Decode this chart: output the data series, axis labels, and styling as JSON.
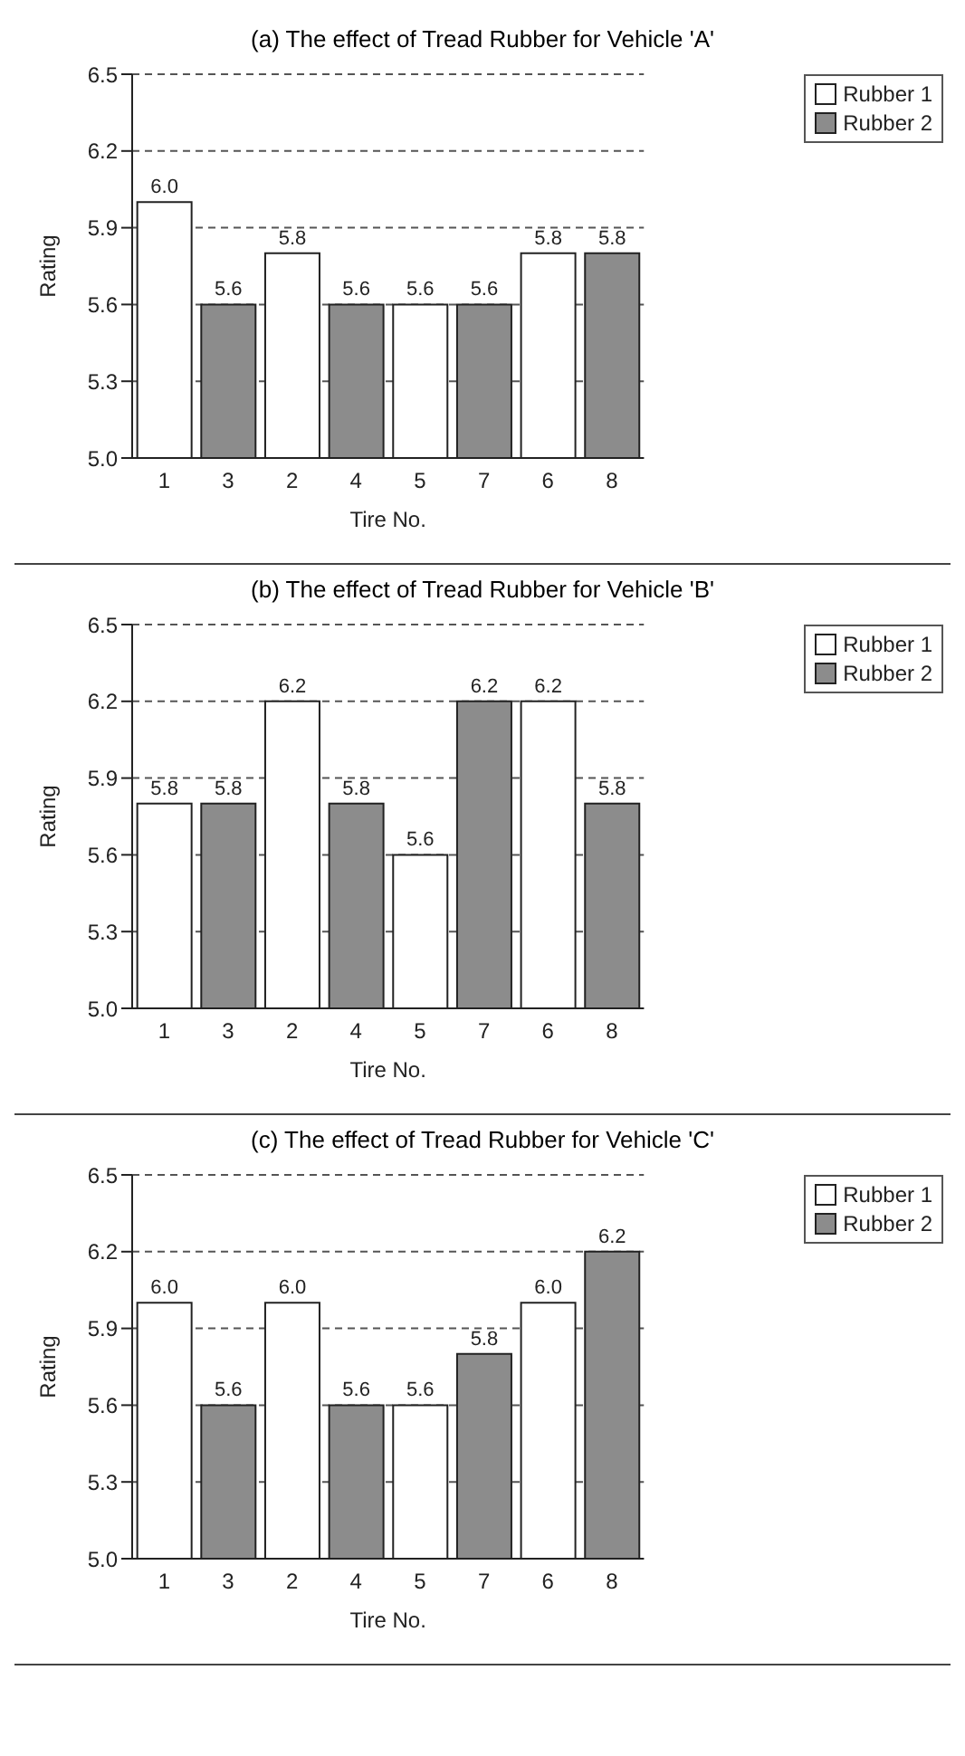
{
  "chart_data": [
    {
      "type": "bar",
      "title": "(a) The effect of Tread Rubber for Vehicle 'A'",
      "xlabel": "Tire No.",
      "ylabel": "Rating",
      "categories": [
        "1",
        "3",
        "2",
        "4",
        "5",
        "7",
        "6",
        "8"
      ],
      "series": [
        {
          "name": "Rubber 1",
          "color": "#ffffff",
          "values": [
            6.0,
            null,
            5.8,
            null,
            5.6,
            null,
            5.8,
            null
          ],
          "value_labels": [
            "6.0",
            null,
            "5.8",
            null,
            "5.6",
            null,
            "5.8",
            null
          ]
        },
        {
          "name": "Rubber 2",
          "color": "#8c8c8c",
          "values": [
            null,
            5.6,
            null,
            5.6,
            null,
            5.6,
            null,
            5.8
          ],
          "value_labels": [
            null,
            "5.6",
            null,
            "5.6",
            null,
            "5.6",
            null,
            "5.8"
          ]
        }
      ],
      "ylim": [
        5.0,
        6.5
      ],
      "yticks": [
        {
          "value": 5.0,
          "label": "5.0"
        },
        {
          "value": 5.3,
          "label": "5.3"
        },
        {
          "value": 5.6,
          "label": "5.6"
        },
        {
          "value": 5.9,
          "label": "5.9"
        },
        {
          "value": 6.2,
          "label": "6.2"
        },
        {
          "value": 6.5,
          "label": "6.5"
        }
      ],
      "grid": "y",
      "legend": "top right"
    },
    {
      "type": "bar",
      "title": "(b) The effect of Tread Rubber for Vehicle 'B'",
      "xlabel": "Tire No.",
      "ylabel": "Rating",
      "categories": [
        "1",
        "3",
        "2",
        "4",
        "5",
        "7",
        "6",
        "8"
      ],
      "series": [
        {
          "name": "Rubber 1",
          "color": "#ffffff",
          "values": [
            5.8,
            null,
            6.2,
            null,
            5.6,
            null,
            6.2,
            null
          ],
          "value_labels": [
            "5.8",
            null,
            "6.2",
            null,
            "5.6",
            null,
            "6.2",
            null
          ]
        },
        {
          "name": "Rubber 2",
          "color": "#8c8c8c",
          "values": [
            null,
            5.8,
            null,
            5.8,
            null,
            6.2,
            null,
            5.8
          ],
          "value_labels": [
            null,
            "5.8",
            null,
            "5.8",
            null,
            "6.2",
            null,
            "5.8"
          ]
        }
      ],
      "ylim": [
        5.0,
        6.5
      ],
      "yticks": [
        {
          "value": 5.0,
          "label": "5.0"
        },
        {
          "value": 5.3,
          "label": "5.3"
        },
        {
          "value": 5.6,
          "label": "5.6"
        },
        {
          "value": 5.9,
          "label": "5.9"
        },
        {
          "value": 6.2,
          "label": "6.2"
        },
        {
          "value": 6.5,
          "label": "6.5"
        }
      ],
      "grid": "y",
      "legend": "top right"
    },
    {
      "type": "bar",
      "title": "(c) The effect of Tread Rubber for Vehicle 'C'",
      "xlabel": "Tire No.",
      "ylabel": "Rating",
      "categories": [
        "1",
        "3",
        "2",
        "4",
        "5",
        "7",
        "6",
        "8"
      ],
      "series": [
        {
          "name": "Rubber 1",
          "color": "#ffffff",
          "values": [
            6.0,
            null,
            6.0,
            null,
            5.6,
            null,
            6.0,
            null
          ],
          "value_labels": [
            "6.0",
            null,
            "6.0",
            null,
            "5.6",
            null,
            "6.0",
            null
          ]
        },
        {
          "name": "Rubber 2",
          "color": "#8c8c8c",
          "values": [
            null,
            5.6,
            null,
            5.6,
            null,
            5.8,
            null,
            6.2
          ],
          "value_labels": [
            null,
            "5.6",
            null,
            "5.6",
            null,
            "5.8",
            null,
            "6.2"
          ]
        }
      ],
      "ylim": [
        5.0,
        6.5
      ],
      "yticks": [
        {
          "value": 5.0,
          "label": "5.0"
        },
        {
          "value": 5.3,
          "label": "5.3"
        },
        {
          "value": 5.6,
          "label": "5.6"
        },
        {
          "value": 5.9,
          "label": "5.9"
        },
        {
          "value": 6.2,
          "label": "6.2"
        },
        {
          "value": 6.5,
          "label": "6.5"
        }
      ],
      "grid": "y",
      "legend": "top right"
    }
  ]
}
